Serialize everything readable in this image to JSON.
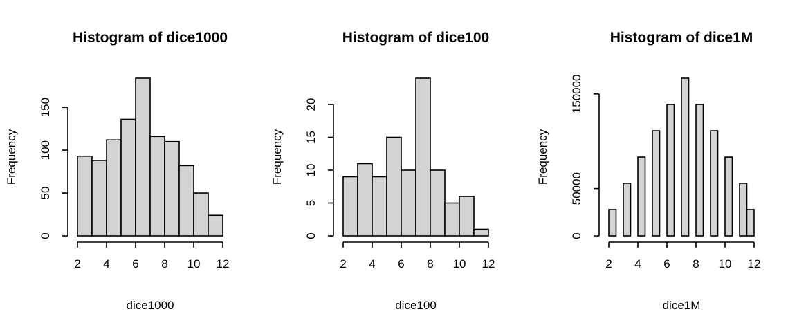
{
  "chart_data": [
    {
      "type": "bar",
      "title": "Histogram of dice1000",
      "xlabel": "dice1000",
      "ylabel": "Frequency",
      "bin_edges": [
        2,
        3,
        4,
        5,
        6,
        7,
        8,
        9,
        10,
        11,
        12
      ],
      "values": [
        93,
        88,
        112,
        136,
        184,
        116,
        110,
        82,
        50,
        24
      ],
      "xlim": [
        2,
        12
      ],
      "xticks": [
        2,
        4,
        6,
        8,
        10,
        12
      ],
      "ylim": [
        0,
        184
      ],
      "yticks": [
        0,
        50,
        100,
        150
      ],
      "grid": false
    },
    {
      "type": "bar",
      "title": "Histogram of dice100",
      "xlabel": "dice100",
      "ylabel": "Frequency",
      "bin_edges": [
        2,
        3,
        4,
        5,
        6,
        7,
        8,
        9,
        10,
        11,
        12
      ],
      "values": [
        9,
        11,
        9,
        15,
        10,
        24,
        10,
        5,
        6,
        1
      ],
      "xlim": [
        2,
        12
      ],
      "xticks": [
        2,
        4,
        6,
        8,
        10,
        12
      ],
      "ylim": [
        0,
        24
      ],
      "yticks": [
        0,
        5,
        10,
        15,
        20
      ],
      "grid": false
    },
    {
      "type": "bar",
      "title": "Histogram of dice1M",
      "xlabel": "dice1M",
      "ylabel": "Frequency",
      "bin_edges": [
        2,
        2.5,
        3,
        3.5,
        4,
        4.5,
        5,
        5.5,
        6,
        6.5,
        7,
        7.5,
        8,
        8.5,
        9,
        9.5,
        10,
        10.5,
        11,
        11.5,
        12
      ],
      "values": [
        27800,
        0,
        55600,
        0,
        83300,
        0,
        111100,
        0,
        138900,
        0,
        166700,
        0,
        138900,
        0,
        111100,
        0,
        83300,
        0,
        55600,
        27800
      ],
      "xlim": [
        2,
        12
      ],
      "xticks": [
        2,
        4,
        6,
        8,
        10,
        12
      ],
      "ylim": [
        0,
        166700
      ],
      "yticks": [
        0,
        50000,
        150000
      ],
      "grid": false
    }
  ]
}
